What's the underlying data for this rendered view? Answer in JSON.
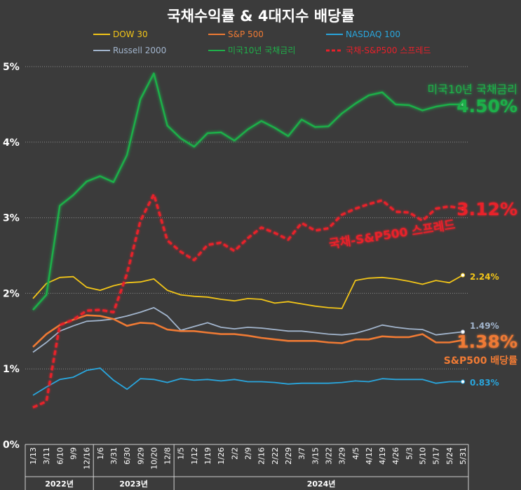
{
  "chart_data": {
    "type": "line",
    "title": "국채수익률 & 4대지수 배당률",
    "xlabel": "",
    "ylabel": "",
    "ylim": [
      0,
      5
    ],
    "y_ticks": [
      "0%",
      "1%",
      "2%",
      "3%",
      "4%",
      "5%"
    ],
    "grid": "horizontal dotted",
    "legend_position": "top",
    "categories": [
      "1/13",
      "3/11",
      "6/10",
      "9/9",
      "12/16",
      "1/6",
      "3/31",
      "6/30",
      "9/29",
      "10/20",
      "12/8",
      "1/5",
      "1/12",
      "1/19",
      "1/26",
      "2/2",
      "2/9",
      "2/16",
      "2/22",
      "2/29",
      "3/7",
      "3/15",
      "3/22",
      "3/29",
      "4/5",
      "4/12",
      "4/19",
      "4/26",
      "5/3",
      "5/10",
      "5/17",
      "5/24",
      "5/31"
    ],
    "year_groups": [
      {
        "label": "2022년",
        "start": 0,
        "end": 4
      },
      {
        "label": "2023년",
        "start": 5,
        "end": 10
      },
      {
        "label": "2024년",
        "start": 11,
        "end": 32
      }
    ],
    "series": [
      {
        "name": "DOW 30",
        "color": "#f2c518",
        "style": "solid",
        "values": [
          1.93,
          2.13,
          2.21,
          2.22,
          2.08,
          2.04,
          2.1,
          2.14,
          2.15,
          2.19,
          2.04,
          1.98,
          1.96,
          1.95,
          1.92,
          1.9,
          1.93,
          1.92,
          1.87,
          1.89,
          1.86,
          1.83,
          1.81,
          1.8,
          2.17,
          2.2,
          2.21,
          2.19,
          2.16,
          2.12,
          2.17,
          2.14,
          2.24
        ]
      },
      {
        "name": "S&P 500",
        "color": "#ef7a34",
        "style": "solid",
        "values": [
          1.29,
          1.46,
          1.58,
          1.65,
          1.71,
          1.7,
          1.66,
          1.57,
          1.61,
          1.6,
          1.52,
          1.5,
          1.5,
          1.48,
          1.46,
          1.46,
          1.44,
          1.41,
          1.39,
          1.37,
          1.37,
          1.37,
          1.35,
          1.34,
          1.39,
          1.39,
          1.43,
          1.42,
          1.42,
          1.46,
          1.35,
          1.35,
          1.38
        ]
      },
      {
        "name": "NASDAQ 100",
        "color": "#29a6dd",
        "style": "solid",
        "values": [
          0.65,
          0.76,
          0.86,
          0.89,
          0.98,
          1.01,
          0.85,
          0.73,
          0.87,
          0.86,
          0.82,
          0.87,
          0.85,
          0.86,
          0.84,
          0.86,
          0.83,
          0.83,
          0.82,
          0.8,
          0.81,
          0.81,
          0.81,
          0.82,
          0.84,
          0.83,
          0.87,
          0.86,
          0.86,
          0.86,
          0.81,
          0.83,
          0.83
        ]
      },
      {
        "name": "Russell 2000",
        "color": "#a2b5cd",
        "style": "solid",
        "values": [
          1.22,
          1.35,
          1.5,
          1.57,
          1.63,
          1.64,
          1.66,
          1.7,
          1.75,
          1.81,
          1.7,
          1.51,
          1.56,
          1.61,
          1.55,
          1.53,
          1.55,
          1.54,
          1.52,
          1.5,
          1.5,
          1.48,
          1.46,
          1.45,
          1.47,
          1.52,
          1.58,
          1.55,
          1.53,
          1.52,
          1.45,
          1.47,
          1.49
        ]
      },
      {
        "name": "미국10년 국채금리",
        "color": "#1fb04a",
        "style": "solid",
        "values": [
          1.78,
          1.98,
          3.16,
          3.3,
          3.48,
          3.55,
          3.47,
          3.83,
          4.57,
          4.91,
          4.22,
          4.05,
          3.94,
          4.12,
          4.13,
          4.02,
          4.17,
          4.28,
          4.19,
          4.08,
          4.3,
          4.2,
          4.21,
          4.38,
          4.51,
          4.62,
          4.66,
          4.5,
          4.49,
          4.42,
          4.47,
          4.5,
          4.5
        ]
      },
      {
        "name": "국채-S&P500 스프레드",
        "color": "#e8202a",
        "style": "dashed",
        "values": [
          0.49,
          0.57,
          1.58,
          1.65,
          1.77,
          1.78,
          1.75,
          2.26,
          2.96,
          3.31,
          2.7,
          2.55,
          2.44,
          2.64,
          2.67,
          2.56,
          2.73,
          2.87,
          2.8,
          2.71,
          2.93,
          2.83,
          2.86,
          3.04,
          3.12,
          3.18,
          3.23,
          3.08,
          3.07,
          2.96,
          3.12,
          3.15,
          3.12
        ]
      }
    ],
    "annotations": {
      "treasury_name": "미국10년 국채금리",
      "treasury_value": "4.50%",
      "spread_value": "3.12%",
      "spread_label": "국채-S&P500 스프레드",
      "dow_value": "2.24%",
      "russell_value": "1.49%",
      "sp_value": "1.38%",
      "sp_label": "S&P500 배당률",
      "nasdaq_value": "0.83%"
    }
  }
}
